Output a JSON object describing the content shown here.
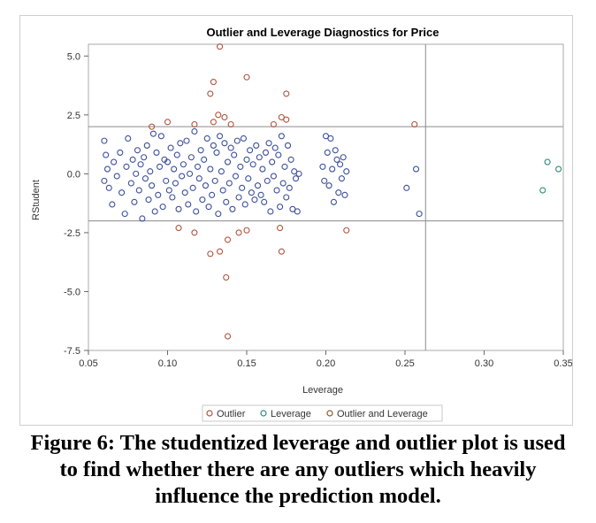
{
  "chart_data": {
    "type": "scatter",
    "title": "Outlier and Leverage Diagnostics for Price",
    "xlabel": "Leverage",
    "ylabel": "RStudent",
    "xlim": [
      0.05,
      0.35
    ],
    "ylim": [
      -7.5,
      5.5
    ],
    "xticks": [
      "0.05",
      "0.10",
      "0.15",
      "0.20",
      "0.25",
      "0.30",
      "0.35"
    ],
    "yticks": [
      "5.0",
      "2.5",
      "0.0",
      "-2.5",
      "-5.0",
      "-7.5"
    ],
    "reference_lines": {
      "y": [
        -2,
        2
      ],
      "x": [
        0.263
      ]
    },
    "grid": false,
    "legend_position": "bottom-center",
    "colors": {
      "normal": "#3b4f9a",
      "outlier": "#b0523a",
      "leverage": "#2e8b7a",
      "outlier_leverage": "#8b5a2b"
    },
    "legend": [
      {
        "label": "Outlier",
        "color": "#b0523a"
      },
      {
        "label": "Leverage",
        "color": "#2e8b7a"
      },
      {
        "label": "Outlier and Leverage",
        "color": "#8b5a2b"
      }
    ],
    "series": [
      {
        "group": "normal",
        "points": [
          [
            0.06,
            1.4
          ],
          [
            0.061,
            0.8
          ],
          [
            0.062,
            0.2
          ],
          [
            0.06,
            -0.3
          ],
          [
            0.063,
            -0.6
          ],
          [
            0.065,
            -1.3
          ],
          [
            0.066,
            0.5
          ],
          [
            0.068,
            -0.1
          ],
          [
            0.07,
            0.9
          ],
          [
            0.071,
            -0.8
          ],
          [
            0.073,
            -1.7
          ],
          [
            0.074,
            0.3
          ],
          [
            0.075,
            1.5
          ],
          [
            0.077,
            -0.4
          ],
          [
            0.078,
            0.6
          ],
          [
            0.079,
            -1.2
          ],
          [
            0.08,
            0.0
          ],
          [
            0.081,
            1.0
          ],
          [
            0.082,
            -0.7
          ],
          [
            0.083,
            0.4
          ],
          [
            0.084,
            -1.9
          ],
          [
            0.085,
            0.7
          ],
          [
            0.086,
            -0.2
          ],
          [
            0.087,
            1.2
          ],
          [
            0.088,
            -1.1
          ],
          [
            0.089,
            0.1
          ],
          [
            0.09,
            -0.5
          ],
          [
            0.091,
            1.7
          ],
          [
            0.092,
            -1.6
          ],
          [
            0.093,
            0.9
          ],
          [
            0.094,
            -0.9
          ],
          [
            0.095,
            0.3
          ],
          [
            0.096,
            1.6
          ],
          [
            0.097,
            -1.4
          ],
          [
            0.098,
            0.6
          ],
          [
            0.099,
            -0.3
          ],
          [
            0.1,
            0.5
          ],
          [
            0.101,
            -0.7
          ],
          [
            0.102,
            1.1
          ],
          [
            0.103,
            -1.0
          ],
          [
            0.104,
            0.2
          ],
          [
            0.105,
            -0.4
          ],
          [
            0.106,
            0.8
          ],
          [
            0.107,
            -1.5
          ],
          [
            0.108,
            1.3
          ],
          [
            0.109,
            -0.1
          ],
          [
            0.11,
            0.4
          ],
          [
            0.111,
            -0.8
          ],
          [
            0.112,
            1.4
          ],
          [
            0.113,
            -1.3
          ],
          [
            0.114,
            0.0
          ],
          [
            0.115,
            0.7
          ],
          [
            0.116,
            -0.6
          ],
          [
            0.117,
            1.8
          ],
          [
            0.118,
            -1.6
          ],
          [
            0.119,
            0.3
          ],
          [
            0.12,
            -0.2
          ],
          [
            0.121,
            1.0
          ],
          [
            0.122,
            -1.1
          ],
          [
            0.123,
            0.6
          ],
          [
            0.124,
            -0.5
          ],
          [
            0.125,
            1.5
          ],
          [
            0.126,
            -1.4
          ],
          [
            0.127,
            0.2
          ],
          [
            0.128,
            -0.9
          ],
          [
            0.129,
            1.2
          ],
          [
            0.13,
            -0.3
          ],
          [
            0.131,
            0.9
          ],
          [
            0.132,
            -1.7
          ],
          [
            0.133,
            1.6
          ],
          [
            0.134,
            0.1
          ],
          [
            0.135,
            -0.7
          ],
          [
            0.136,
            1.3
          ],
          [
            0.137,
            -1.2
          ],
          [
            0.138,
            0.5
          ],
          [
            0.139,
            -0.4
          ],
          [
            0.14,
            1.1
          ],
          [
            0.141,
            -1.5
          ],
          [
            0.142,
            0.8
          ],
          [
            0.143,
            -0.1
          ],
          [
            0.144,
            1.4
          ],
          [
            0.145,
            -1.0
          ],
          [
            0.146,
            0.3
          ],
          [
            0.147,
            -0.6
          ],
          [
            0.148,
            1.5
          ],
          [
            0.149,
            -1.3
          ],
          [
            0.15,
            0.6
          ],
          [
            0.151,
            -0.2
          ],
          [
            0.152,
            1.0
          ],
          [
            0.153,
            -0.8
          ],
          [
            0.154,
            0.4
          ],
          [
            0.155,
            -1.1
          ],
          [
            0.156,
            1.2
          ],
          [
            0.157,
            -0.5
          ],
          [
            0.158,
            0.7
          ],
          [
            0.159,
            -0.9
          ],
          [
            0.16,
            0.2
          ],
          [
            0.161,
            -1.2
          ],
          [
            0.162,
            0.9
          ],
          [
            0.163,
            -0.3
          ],
          [
            0.164,
            1.3
          ],
          [
            0.165,
            -1.6
          ],
          [
            0.166,
            0.5
          ],
          [
            0.167,
            -0.1
          ],
          [
            0.168,
            1.1
          ],
          [
            0.169,
            -0.7
          ],
          [
            0.17,
            0.8
          ],
          [
            0.171,
            -1.4
          ],
          [
            0.172,
            1.6
          ],
          [
            0.173,
            -0.4
          ],
          [
            0.174,
            0.3
          ],
          [
            0.175,
            -1.0
          ],
          [
            0.176,
            1.2
          ],
          [
            0.177,
            -0.6
          ],
          [
            0.178,
            0.6
          ],
          [
            0.179,
            -1.5
          ],
          [
            0.18,
            0.1
          ],
          [
            0.181,
            -0.2
          ],
          [
            0.182,
            -1.6
          ],
          [
            0.183,
            0.0
          ],
          [
            0.198,
            0.3
          ],
          [
            0.199,
            -0.3
          ],
          [
            0.2,
            1.6
          ],
          [
            0.201,
            0.9
          ],
          [
            0.202,
            -0.5
          ],
          [
            0.203,
            1.5
          ],
          [
            0.204,
            0.2
          ],
          [
            0.205,
            -1.2
          ],
          [
            0.206,
            1.0
          ],
          [
            0.207,
            0.6
          ],
          [
            0.208,
            -0.8
          ],
          [
            0.209,
            0.4
          ],
          [
            0.21,
            -0.2
          ],
          [
            0.211,
            0.7
          ],
          [
            0.212,
            -0.9
          ],
          [
            0.213,
            0.1
          ],
          [
            0.251,
            -0.6
          ],
          [
            0.257,
            0.2
          ],
          [
            0.259,
            -1.7
          ]
        ]
      },
      {
        "group": "outlier",
        "points": [
          [
            0.09,
            2.0
          ],
          [
            0.1,
            2.2
          ],
          [
            0.107,
            -2.3
          ],
          [
            0.117,
            2.1
          ],
          [
            0.117,
            -2.5
          ],
          [
            0.127,
            3.4
          ],
          [
            0.127,
            -3.4
          ],
          [
            0.129,
            3.9
          ],
          [
            0.129,
            2.2
          ],
          [
            0.132,
            2.5
          ],
          [
            0.133,
            5.4
          ],
          [
            0.133,
            -3.3
          ],
          [
            0.136,
            2.4
          ],
          [
            0.137,
            -4.4
          ],
          [
            0.138,
            -2.8
          ],
          [
            0.138,
            -6.9
          ],
          [
            0.14,
            2.1
          ],
          [
            0.145,
            -2.5
          ],
          [
            0.15,
            4.1
          ],
          [
            0.15,
            -2.4
          ],
          [
            0.167,
            2.1
          ],
          [
            0.171,
            -2.3
          ],
          [
            0.172,
            2.4
          ],
          [
            0.172,
            -3.3
          ],
          [
            0.175,
            2.3
          ],
          [
            0.175,
            3.4
          ],
          [
            0.213,
            -2.4
          ],
          [
            0.256,
            2.1
          ]
        ]
      },
      {
        "group": "leverage",
        "points": [
          [
            0.337,
            -0.7
          ],
          [
            0.34,
            0.5
          ],
          [
            0.347,
            0.2
          ]
        ]
      }
    ]
  },
  "caption": {
    "line1": "Figure 6: The studentized leverage and outlier plot is used",
    "line2": "to find whether there are any outliers which heavily",
    "line3": "influence the prediction model."
  }
}
